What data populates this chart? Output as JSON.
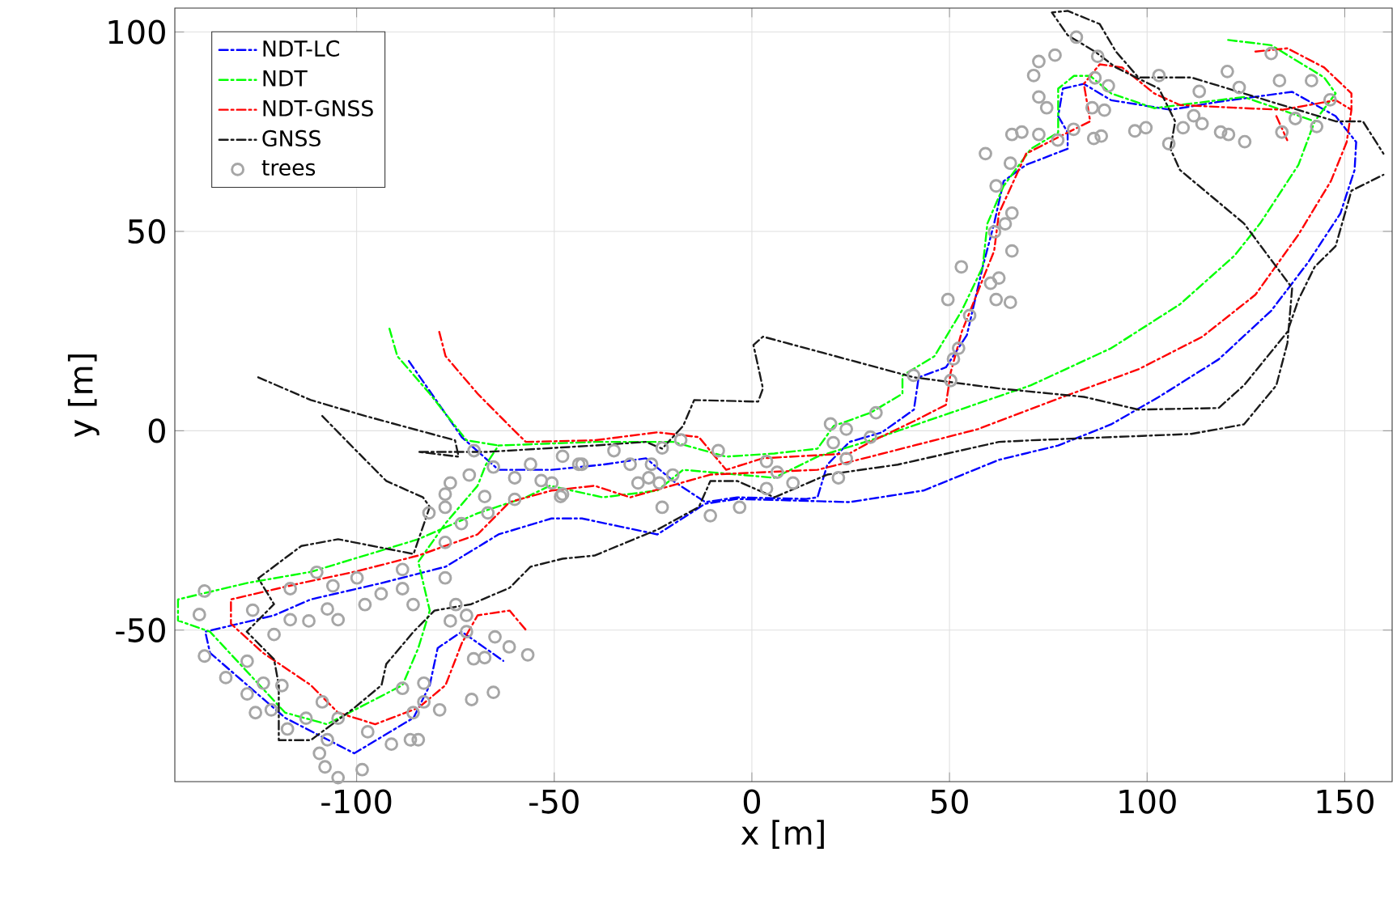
{
  "chart_data": {
    "type": "line",
    "xlabel": "x [m]",
    "ylabel": "y [m]",
    "xlim": [
      -146,
      162
    ],
    "ylim": [
      -88,
      106
    ],
    "xticks": [
      -100,
      -50,
      0,
      50,
      100,
      150
    ],
    "yticks": [
      -50,
      0,
      50,
      100
    ],
    "grid": true,
    "legend": "top left",
    "line_style": "dashed",
    "marker": "none",
    "series": [
      {
        "name": "NDT-LC",
        "color": "#0000ff",
        "x": [
          -86.8,
          -73.4,
          -64.1,
          -50.7,
          -37.7,
          -26.8,
          -19.9,
          -11.8,
          -3.7,
          13.8,
          16.6,
          19.1,
          24.7,
          32.9,
          41.0,
          42.2,
          49.1,
          54.4,
          58.4,
          61.3,
          63.7,
          69.4,
          79.9,
          79.9,
          77.5,
          78.7,
          84.0,
          90.9,
          105.9,
          118.1,
          136.7,
          147.7,
          152.9,
          152.5,
          148.9,
          140.8,
          131.4,
          118.1,
          103.0,
          90.9,
          77.5,
          62.5,
          43.4,
          24.7,
          -3.7,
          -11.8,
          -23.9,
          -43.0,
          -50.7,
          -64.1,
          -77.5,
          -93.7,
          -111.6,
          -120.9,
          -138.3,
          -137.1,
          -118.1,
          -100.6,
          -85.6,
          -81.5,
          -79.5,
          -73.4,
          -62.9
        ],
        "values": [
          17.5,
          -1.6,
          -9.8,
          -9.8,
          -8.5,
          -6.9,
          -12.6,
          -17.9,
          -16.7,
          -17.1,
          -16.7,
          -8.5,
          -2.8,
          -0.4,
          5.3,
          13.4,
          15.9,
          24.0,
          41.1,
          52.0,
          62.6,
          66.7,
          70.7,
          74.8,
          78.9,
          85.8,
          87.0,
          82.9,
          80.5,
          82.5,
          85.0,
          78.9,
          72.4,
          65.4,
          54.5,
          42.3,
          30.1,
          17.9,
          8.5,
          1.6,
          -3.7,
          -7.3,
          -15.0,
          -17.9,
          -17.1,
          -18.3,
          -26.0,
          -22.0,
          -22.0,
          -26.0,
          -34.1,
          -38.2,
          -42.3,
          -46.3,
          -50.4,
          -55.7,
          -72.0,
          -80.9,
          -72.0,
          -63.8,
          -54.5,
          -50.4,
          -57.7
        ]
      },
      {
        "name": "NDT",
        "color": "#00ff00",
        "x": [
          -91.7,
          -89.7,
          -81.5,
          -72.2,
          -64.1,
          -39.8,
          -19.9,
          -6.5,
          5.7,
          16.6,
          20.7,
          30.0,
          38.1,
          38.1,
          46.2,
          53.1,
          58.4,
          59.6,
          63.7,
          70.6,
          77.5,
          77.5,
          81.5,
          85.6,
          90.9,
          101.8,
          124.5,
          142.4,
          138.3,
          128.6,
          122.1,
          108.3,
          90.9,
          70.6,
          50.3,
          30.0,
          16.6,
          5.7,
          -17.4,
          -23.9,
          -37.7,
          -51.1,
          -57.2,
          -69.4,
          -84.4,
          -111.6,
          -127.8,
          -145.2,
          -145.2,
          -137.1,
          -118.1,
          -107.5,
          -88.4,
          -84.4,
          -81.5,
          -84.4,
          -77.5,
          -69.4,
          -67.3,
          -64.1,
          null,
          120.5,
          131.4,
          144.8,
          147.7,
          142.4
        ],
        "values": [
          25.6,
          18.7,
          9.3,
          -2.4,
          -3.7,
          -2.8,
          -2.8,
          -6.5,
          -5.7,
          -4.5,
          1.2,
          4.5,
          9.3,
          13.8,
          18.7,
          30.1,
          41.1,
          52.0,
          61.4,
          70.7,
          74.8,
          85.8,
          89.0,
          89.0,
          84.6,
          80.9,
          83.7,
          77.6,
          66.7,
          52.0,
          43.9,
          31.7,
          20.7,
          11.4,
          4.5,
          -2.4,
          -6.5,
          -11.8,
          -9.8,
          -15.0,
          -16.7,
          -13.8,
          -16.7,
          -20.7,
          -27.2,
          -35.4,
          -38.2,
          -42.3,
          -47.6,
          -50.4,
          -70.7,
          -73.6,
          -63.8,
          -54.5,
          -45.1,
          -32.9,
          -23.2,
          -13.8,
          -8.5,
          -3.7,
          null,
          98.0,
          96.7,
          88.6,
          84.6,
          77.6
        ]
      },
      {
        "name": "NDT-GNSS",
        "color": "#ff0000",
        "x": [
          -79.1,
          -77.5,
          -69.4,
          -61.3,
          -57.2,
          -39.8,
          -23.9,
          -13.4,
          -6.5,
          2.8,
          24.7,
          30.0,
          41.0,
          49.1,
          50.3,
          53.1,
          61.3,
          62.5,
          69.4,
          77.5,
          85.6,
          84.0,
          88.0,
          93.7,
          101.8,
          108.3,
          124.5,
          134.3,
          147.7,
          151.7,
          150.5,
          146.5,
          138.3,
          127.4,
          114.0,
          97.8,
          78.7,
          57.2,
          30.0,
          16.6,
          -10.5,
          -30.8,
          -39.8,
          -50.7,
          -61.3,
          -69.4,
          -84.4,
          -100.6,
          -114.0,
          -131.8,
          -131.8,
          -123.7,
          -111.6,
          -104.7,
          -95.3,
          -84.4,
          -77.5,
          -73.4,
          -69.4,
          -61.3,
          -56.8,
          null,
          127.4,
          135.5,
          144.8,
          151.7,
          151.7,
          null,
          132.7,
          135.5
        ],
        "values": [
          24.8,
          18.7,
          9.3,
          1.2,
          -2.8,
          -2.4,
          -0.4,
          -1.6,
          -9.8,
          -6.9,
          -5.7,
          -2.8,
          2.4,
          6.5,
          14.6,
          24.8,
          45.1,
          54.5,
          69.5,
          73.6,
          77.6,
          87.0,
          91.9,
          91.1,
          84.6,
          81.7,
          80.9,
          80.5,
          82.9,
          80.5,
          72.4,
          62.6,
          49.2,
          34.1,
          23.6,
          15.4,
          8.5,
          0.4,
          -6.5,
          -9.8,
          -11.0,
          -16.7,
          -13.8,
          -15.0,
          -17.9,
          -26.0,
          -31.3,
          -35.4,
          -38.2,
          -42.3,
          -48.4,
          -55.7,
          -63.8,
          -70.7,
          -73.6,
          -69.5,
          -63.8,
          -53.3,
          -46.3,
          -45.1,
          -50.4,
          null,
          95.1,
          95.9,
          91.1,
          84.6,
          80.5,
          null,
          78.9,
          72.8
        ]
      },
      {
        "name": "GNSS",
        "color": "#1a1a1a",
        "x": [
          -124.9,
          -111.6,
          -97.8,
          -75.1,
          -74.2,
          -84.4,
          -66.9,
          -39.8,
          -26.8,
          -22.7,
          -17.4,
          -14.6,
          1.6,
          2.8,
          0.4,
          2.8,
          41.0,
          62.5,
          84.0,
          97.8,
          118.1,
          124.5,
          135.5,
          138.3,
          142.4,
          147.7,
          151.7,
          159.8,
          null,
          -108.7,
          -100.6,
          -92.5,
          -83.2,
          -81.5,
          -85.6,
          -104.7,
          -114.0,
          -124.9,
          -120.9,
          -127.8,
          -120.9,
          -119.7,
          -119.7,
          -111.6,
          -100.6,
          -93.7,
          -92.5,
          -85.6,
          -80.3,
          -71.0,
          -61.3,
          -56.0,
          -47.9,
          -39.8,
          -23.9,
          -13.4,
          -10.5,
          -3.7,
          5.7,
          19.1,
          36.9,
          62.5,
          70.6,
          111.2,
          124.5,
          132.7,
          135.5,
          136.7,
          124.5,
          108.3,
          105.9,
          107.1,
          103.0,
          92.1,
          86.8,
          79.9,
          75.9,
          79.9,
          88.0,
          92.1,
          97.8,
          111.2,
          147.7,
          154.6,
          159.8
        ],
        "values": [
          13.4,
          7.7,
          3.7,
          -2.4,
          -6.5,
          -5.3,
          -5.3,
          -3.7,
          -2.8,
          -4.5,
          1.2,
          7.7,
          7.3,
          10.6,
          21.5,
          23.6,
          13.4,
          10.6,
          8.5,
          5.3,
          5.7,
          11.4,
          24.8,
          32.9,
          41.1,
          46.3,
          60.2,
          64.2,
          null,
          3.7,
          -4.5,
          -12.6,
          -16.7,
          -19.1,
          -30.9,
          -27.2,
          -28.9,
          -37.0,
          -43.5,
          -50.4,
          -57.3,
          -63.8,
          -77.6,
          -77.6,
          -69.5,
          -63.8,
          -58.5,
          -50.4,
          -45.1,
          -43.5,
          -39.4,
          -34.1,
          -32.1,
          -31.3,
          -24.8,
          -19.1,
          -12.6,
          -12.6,
          -16.7,
          -11.0,
          -8.5,
          -2.8,
          -2.4,
          -0.8,
          1.6,
          11.4,
          22.0,
          35.8,
          52.0,
          65.4,
          70.7,
          77.6,
          85.8,
          91.1,
          95.1,
          99.2,
          104.9,
          105.3,
          102.0,
          95.1,
          88.6,
          88.6,
          77.6,
          77.6,
          69.5
        ]
      },
      {
        "name": "trees",
        "type": "scatter",
        "marker": "circle",
        "color": "#a6a6a6",
        "x": [
          -138.5,
          -139.8,
          -138.5,
          -133.1,
          -127.7,
          -127.7,
          -123.6,
          -118.9,
          -125.6,
          -121.6,
          -117.5,
          -112.8,
          -108.7,
          -104.7,
          -107.4,
          -109.4,
          -108.0,
          -104.7,
          -98.6,
          -97.2,
          -91.2,
          -86.4,
          -84.4,
          -85.7,
          -83.0,
          -79.0,
          -88.4,
          -83.0,
          -70.9,
          -65.4,
          -70.4,
          -67.6,
          -65.0,
          -61.4,
          -56.7,
          -72.2,
          -76.3,
          -74.9,
          -72.2,
          -85.7,
          -88.4,
          -93.8,
          -97.9,
          -104.7,
          -107.4,
          -112.1,
          -116.8,
          -120.9,
          -126.3,
          -116.8,
          -106.0,
          -110.1,
          -99.9,
          -88.4,
          -77.6,
          -77.6,
          -81.7,
          -77.6,
          -73.5,
          -77.6,
          -76.3,
          -71.5,
          -67.6,
          -66.8,
          -65.4,
          -60.0,
          -56.0,
          -53.3,
          -50.6,
          -47.9,
          -47.9,
          -43.8,
          -60.0,
          -70.3,
          -43.0,
          -48.4,
          -34.9,
          -30.8,
          -25.4,
          -22.7,
          -26.1,
          -28.8,
          -23.4,
          -18.0,
          -20.0,
          -8.5,
          -10.5,
          -22.7,
          -3.1,
          3.7,
          6.4,
          3.7,
          10.4,
          19.9,
          20.6,
          23.9,
          30.0,
          31.4,
          23.9,
          21.9,
          40.9,
          49.6,
          55.1,
          51.0,
          52.3,
          50.3,
          53.0,
          60.4,
          62.5,
          65.4,
          61.8,
          65.8,
          61.4,
          64.1,
          65.8,
          61.8,
          59.1,
          65.4,
          68.3,
          65.8,
          72.6,
          77.4,
          74.6,
          72.6,
          71.3,
          72.6,
          76.7,
          82.1,
          87.5,
          86.8,
          90.2,
          86.1,
          89.2,
          81.4,
          86.5,
          88.4,
          96.9,
          99.7,
          105.5,
          103.0,
          109.1,
          111.8,
          113.9,
          113.2,
          118.6,
          120.6,
          124.7,
          123.3,
          120.3,
          131.4,
          133.5,
          141.6,
          137.5,
          142.9,
          134.1,
          146.3
        ],
        "values": [
          -40.2,
          -46.1,
          -56.5,
          -61.9,
          -66.0,
          -57.8,
          -63.3,
          -63.9,
          -70.7,
          -70.0,
          -74.8,
          -72.1,
          -68.0,
          -72.1,
          -77.5,
          -80.9,
          -84.3,
          -87.0,
          -85.0,
          -75.5,
          -78.6,
          -77.5,
          -77.5,
          -70.7,
          -68.0,
          -70.0,
          -64.6,
          -63.3,
          -67.4,
          -65.6,
          -57.2,
          -56.9,
          -51.7,
          -54.2,
          -56.2,
          -50.4,
          -47.7,
          -43.6,
          -46.3,
          -43.6,
          -39.6,
          -40.9,
          -43.6,
          -47.4,
          -44.7,
          -47.7,
          -47.4,
          -51.1,
          -45.0,
          -39.6,
          -38.9,
          -35.5,
          -36.9,
          -34.8,
          -36.9,
          -28.0,
          -20.6,
          -19.2,
          -23.3,
          -15.9,
          -13.1,
          -11.1,
          -16.5,
          -20.6,
          -9.1,
          -11.8,
          -8.4,
          -12.5,
          -13.1,
          -15.9,
          -6.4,
          -8.4,
          -17.2,
          -5.0,
          -8.4,
          -16.5,
          -5.0,
          -8.4,
          -8.4,
          -4.3,
          -11.8,
          -13.1,
          -13.1,
          -2.3,
          -11.1,
          -5.0,
          -21.3,
          -19.2,
          -19.2,
          -7.7,
          -10.4,
          -14.5,
          -13.1,
          1.7,
          -3.0,
          0.4,
          -1.6,
          4.5,
          -7.0,
          -11.8,
          13.9,
          32.9,
          28.9,
          18.0,
          20.7,
          12.6,
          41.1,
          37.0,
          38.3,
          32.2,
          32.9,
          45.1,
          49.9,
          51.9,
          54.6,
          61.4,
          69.5,
          67.1,
          74.9,
          74.3,
          74.3,
          72.9,
          81.0,
          83.7,
          89.1,
          92.6,
          94.2,
          98.7,
          93.9,
          88.5,
          86.5,
          81.0,
          80.4,
          75.6,
          73.3,
          73.9,
          75.2,
          76.0,
          72.0,
          89.1,
          76.0,
          79.0,
          77.0,
          85.1,
          74.9,
          74.3,
          72.5,
          86.1,
          90.1,
          94.6,
          87.8,
          87.8,
          78.3,
          76.3,
          74.9,
          83.0
        ]
      }
    ]
  }
}
